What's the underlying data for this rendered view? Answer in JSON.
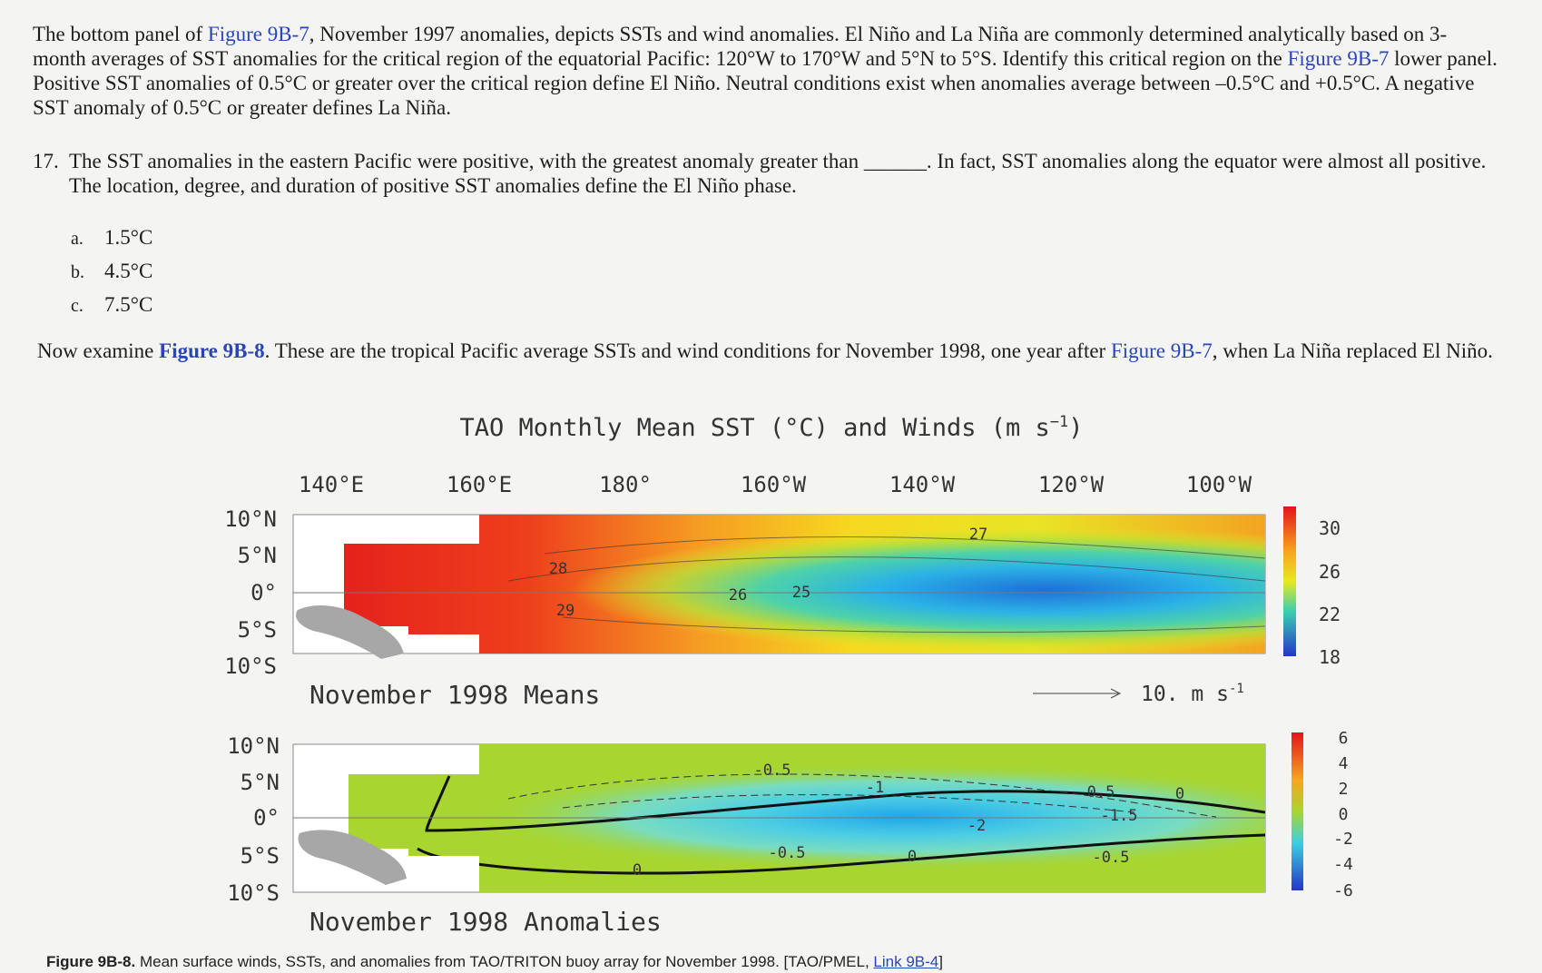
{
  "intro": {
    "t1": "The bottom panel of ",
    "link1": "Figure 9B-7",
    "t2": ", November 1997 anomalies, depicts SSTs and wind anomalies. El Niño and La Niña are commonly determined analytically based on 3-month averages of SST anomalies for the critical region of the equatorial Pacific: 120°W to 170°W and 5°N to 5°S. Identify this critical region on the ",
    "link2": "Figure 9B-7",
    "t3": " lower panel. Positive SST anomalies of 0.5°C or greater over the critical region define El Niño. Neutral conditions exist when anomalies average between –0.5°C and +0.5°C. A negative SST anomaly of 0.5°C or greater defines La Niña."
  },
  "question": {
    "number": "17.",
    "text": "The SST anomalies in the eastern Pacific were positive, with the greatest anomaly greater than ______. In fact, SST anomalies along the equator were almost all positive. The location, degree, and duration of positive SST anomalies define the El Niño phase.",
    "options": [
      {
        "letter": "a.",
        "text": "1.5°C"
      },
      {
        "letter": "b.",
        "text": "4.5°C"
      },
      {
        "letter": "c.",
        "text": "7.5°C"
      }
    ]
  },
  "examine": {
    "t1": "Now examine ",
    "link1": "Figure 9B-8",
    "t2": ". These are the tropical Pacific average SSTs and wind conditions for November 1998, one year after ",
    "link2": "Figure 9B-7",
    "t3": ", when La Niña replaced El Niño."
  },
  "figure": {
    "title": {
      "main": "TAO Monthly Mean SST (°C) and Winds (m s",
      "sup": "−1",
      "end": ")"
    },
    "longitudes": [
      "140°E",
      "160°E",
      "180°",
      "160°W",
      "140°W",
      "120°W",
      "100°W"
    ],
    "latitudes": [
      "10°N",
      "5°N",
      "0°",
      "5°S",
      "10°S"
    ],
    "means_label": "November 1998 Means",
    "anomalies_label": "November 1998 Anomalies",
    "scale": {
      "text": "10.  m s",
      "sup": "-1"
    },
    "means_colorbar": [
      30,
      26,
      22,
      18
    ],
    "anomalies_colorbar": [
      6,
      4,
      2,
      0,
      -2,
      -4,
      -6
    ],
    "means_contours": [
      27,
      28,
      29,
      26,
      25
    ],
    "anomaly_contours": [
      -0.5,
      -1,
      -2,
      -1.5,
      0.5,
      0,
      -0.5,
      0,
      0,
      -0.5
    ]
  },
  "caption": {
    "label": "Figure 9B-8.",
    "text": " Mean surface winds, SSTs, and anomalies from TAO/TRITON buoy array for November 1998. [TAO/PMEL, ",
    "link": "Link 9B-4",
    "end": "]"
  }
}
